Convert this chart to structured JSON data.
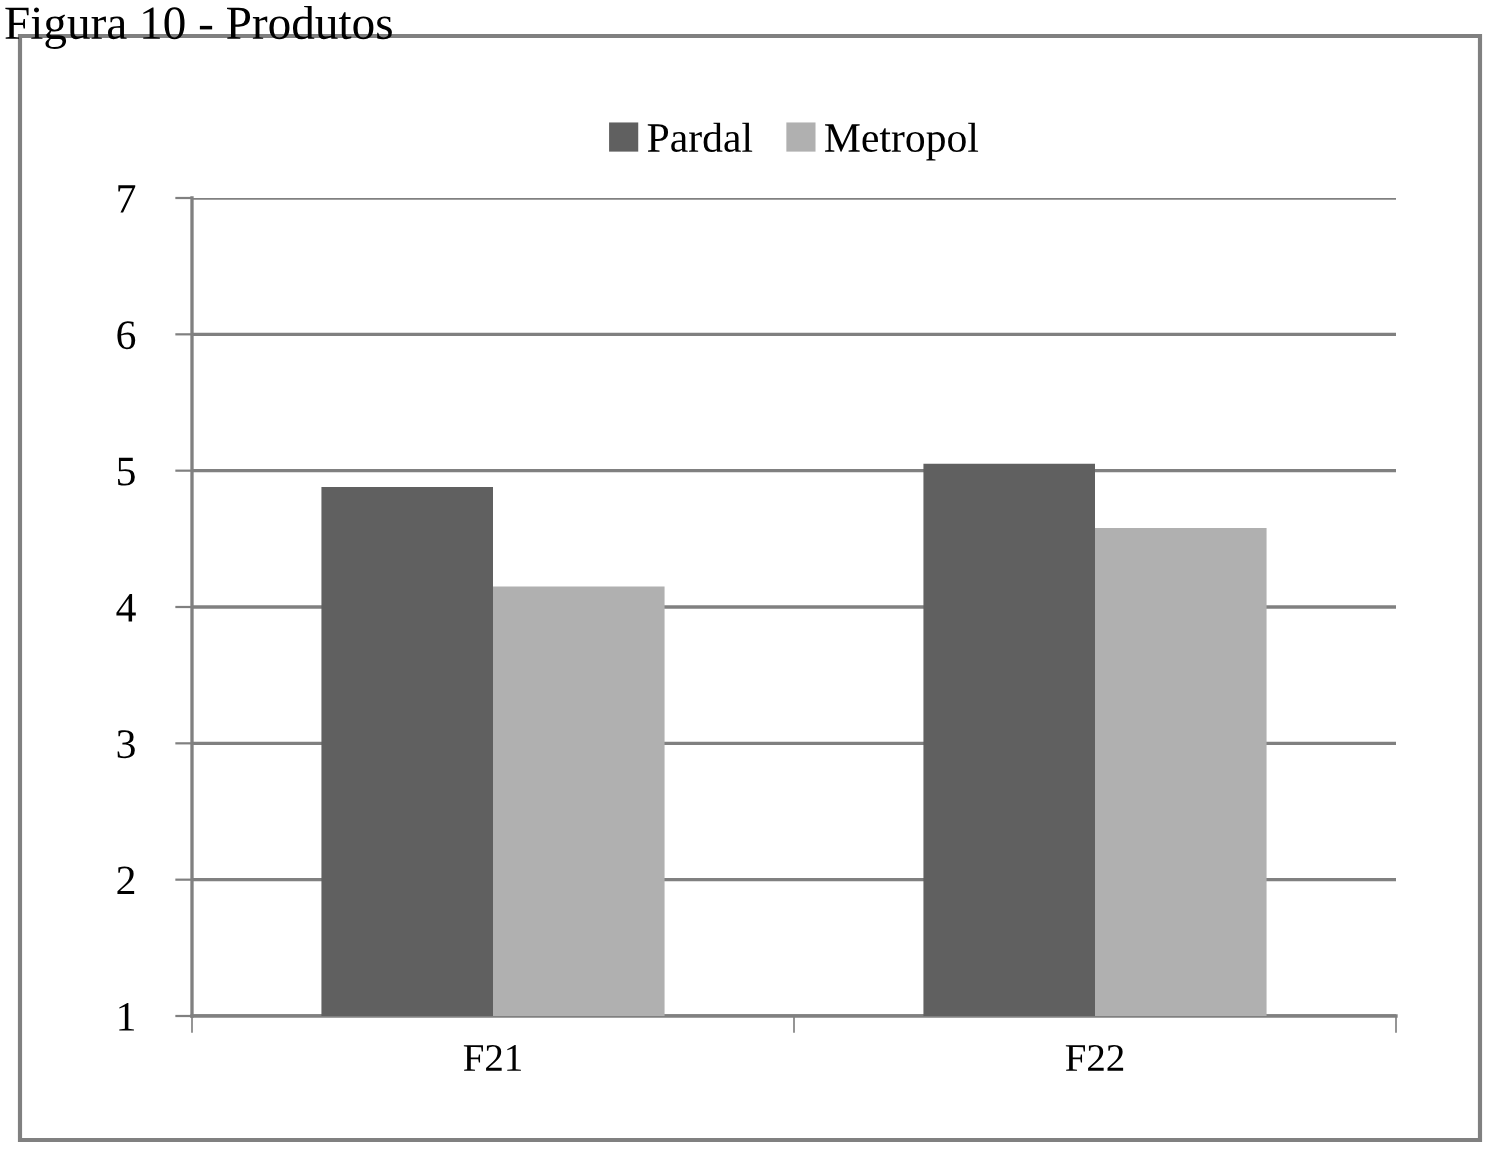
{
  "chart_data": {
    "type": "bar",
    "title": "Figura 10 - Produtos",
    "categories": [
      "F21",
      "F22"
    ],
    "series": [
      {
        "name": "Pardal",
        "color": "#606060",
        "values": [
          4.88,
          5.05
        ]
      },
      {
        "name": "Metropol",
        "color": "#b0b0b0",
        "values": [
          4.15,
          4.58
        ]
      }
    ],
    "ylim": [
      1,
      7
    ],
    "yticks": [
      1,
      2,
      3,
      4,
      5,
      6,
      7
    ],
    "grid": "y",
    "legend": "top"
  }
}
